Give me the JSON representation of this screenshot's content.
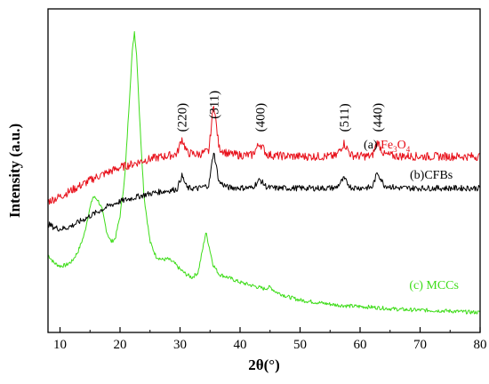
{
  "chart_data": {
    "type": "line",
    "xlabel": "2θ(°)",
    "ylabel": "Intensity (a.u.)",
    "xlim": [
      8,
      80
    ],
    "ylim": [
      0,
      100
    ],
    "x_ticks": [
      10,
      20,
      30,
      40,
      50,
      60,
      70,
      80
    ],
    "y_tick_labels_shown": false,
    "grid": false,
    "legend": "inline labels at right",
    "peak_labels": [
      {
        "text": "(220)",
        "x": 30.3
      },
      {
        "text": "(311)",
        "x": 35.6
      },
      {
        "text": "(400)",
        "x": 43.3
      },
      {
        "text": "(511)",
        "x": 57.3
      },
      {
        "text": "(440)",
        "x": 62.9
      }
    ],
    "series": [
      {
        "name": "(a) Fe3O4",
        "label_prefix": "(a) Fe",
        "label_sub1": "3",
        "label_mid": "O",
        "label_sub2": "4",
        "color": "#e8101a",
        "x": [
          8,
          10,
          12,
          14,
          16,
          18,
          20,
          22,
          24,
          26,
          28,
          29.5,
          30.3,
          31.2,
          33,
          34.8,
          35.6,
          36.5,
          38,
          40,
          42,
          43.3,
          44.5,
          46,
          48,
          50,
          52,
          54,
          56,
          57.3,
          58.5,
          60,
          62,
          62.9,
          64,
          66,
          68,
          70,
          72,
          74,
          76,
          78,
          80
        ],
        "y": [
          40.5,
          42,
          44,
          46,
          48,
          49.5,
          51,
          52,
          53.2,
          54,
          54.6,
          55.2,
          60,
          55.5,
          55,
          56,
          71,
          57,
          55.2,
          54.8,
          54.8,
          58.5,
          55,
          54.6,
          54.5,
          54.4,
          54.4,
          54.4,
          54.5,
          58.5,
          54.8,
          54.5,
          54.5,
          59,
          55,
          54.5,
          54.5,
          54.4,
          54.4,
          54.4,
          54.4,
          54.4,
          54.4
        ]
      },
      {
        "name": "(b)CFBs",
        "label": "(b)CFBs",
        "color": "#000000",
        "x": [
          8,
          9,
          10,
          11,
          12,
          13,
          14,
          16,
          18,
          20,
          22,
          24,
          26,
          28,
          29.5,
          30.3,
          31.2,
          33,
          34.8,
          35.6,
          36.5,
          38,
          40,
          42,
          43.3,
          44.5,
          46,
          48,
          50,
          52,
          54,
          56,
          57.3,
          58.5,
          60,
          62,
          62.9,
          64,
          66,
          68,
          70,
          72,
          74,
          76,
          78,
          80
        ],
        "y": [
          33.5,
          32.5,
          32,
          32.3,
          33,
          34,
          35,
          37,
          39,
          40.5,
          41.5,
          42.5,
          43.3,
          43.8,
          44.3,
          48.5,
          44.6,
          44.5,
          45.5,
          56,
          46.5,
          44.8,
          44.7,
          44.7,
          47.2,
          44.8,
          44.6,
          44.6,
          44.6,
          44.6,
          44.6,
          44.7,
          47.5,
          44.8,
          44.7,
          44.8,
          49.5,
          45.5,
          44.7,
          44.6,
          44.6,
          44.6,
          44.6,
          44.6,
          44.6,
          44.6
        ]
      },
      {
        "name": "(c) MCCs",
        "label": "(c) MCCs",
        "color": "#3ddc18",
        "x": [
          8,
          9,
          10,
          11,
          12,
          13,
          14,
          14.8,
          15.5,
          16.3,
          17,
          17.8,
          18.5,
          19.2,
          20,
          20.8,
          21.5,
          22,
          22.4,
          22.8,
          23.3,
          24,
          25,
          26,
          27,
          28,
          29,
          30,
          31,
          32,
          33,
          33.8,
          34.3,
          34.8,
          35.5,
          36.5,
          38,
          40,
          42,
          44,
          45,
          46,
          48,
          50,
          52,
          54,
          56,
          58,
          60,
          62,
          64,
          66,
          68,
          70,
          72,
          74,
          76,
          78,
          80
        ],
        "y": [
          24,
          21.5,
          20.5,
          20.8,
          22,
          25,
          30,
          37,
          42,
          41,
          38,
          31,
          28,
          29,
          36,
          48,
          70,
          86,
          93,
          85,
          65,
          42,
          28,
          23.5,
          22.5,
          22.7,
          21.5,
          19.5,
          18,
          17,
          18.5,
          26,
          31,
          27,
          21,
          18,
          17,
          15.5,
          14.5,
          13.5,
          14,
          12.5,
          11,
          10,
          9.5,
          9,
          8.5,
          8.2,
          8,
          7.8,
          7.5,
          7.2,
          7,
          6.9,
          6.8,
          6.7,
          6.5,
          6.3,
          6.2
        ]
      }
    ]
  }
}
